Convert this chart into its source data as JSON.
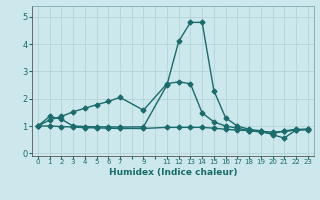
{
  "xlabel": "Humidex (Indice chaleur)",
  "bg_color": "#cce8ec",
  "line_color": "#1a6b6b",
  "grid_color": "#b0d0d4",
  "ylim": [
    -0.1,
    5.4
  ],
  "xlim": [
    -0.5,
    23.5
  ],
  "yticks": [
    0,
    1,
    2,
    3,
    4,
    5
  ],
  "xtick_labels": [
    "0",
    "1",
    "2",
    "3",
    "4",
    "5",
    "6",
    "7",
    "",
    "9",
    "",
    "11",
    "12",
    "13",
    "14",
    "15",
    "16",
    "17",
    "18",
    "19",
    "20",
    "21",
    "22",
    "23"
  ],
  "line1_x": [
    0,
    1,
    2,
    3,
    4,
    5,
    6,
    7,
    9,
    11,
    12,
    13,
    14,
    15,
    16,
    17,
    18,
    19,
    20,
    21,
    22,
    23
  ],
  "line1_y": [
    1.0,
    1.35,
    1.25,
    1.0,
    0.98,
    0.97,
    0.97,
    0.96,
    0.97,
    2.5,
    4.1,
    4.8,
    4.8,
    2.3,
    1.3,
    1.0,
    0.88,
    0.82,
    0.68,
    0.56,
    0.85,
    0.88
  ],
  "line2_x": [
    0,
    1,
    2,
    3,
    4,
    5,
    6,
    7,
    9,
    11,
    12,
    13,
    14,
    15,
    16,
    17,
    18,
    19,
    20,
    21,
    22,
    23
  ],
  "line2_y": [
    1.0,
    1.22,
    1.35,
    1.52,
    1.65,
    1.78,
    1.9,
    2.05,
    1.58,
    2.55,
    2.62,
    2.55,
    1.48,
    1.15,
    1.0,
    0.92,
    0.83,
    0.78,
    0.72,
    0.82,
    0.88,
    0.88
  ],
  "line3_x": [
    0,
    1,
    2,
    3,
    4,
    5,
    6,
    7,
    9,
    11,
    12,
    13,
    14,
    15,
    16,
    17,
    18,
    19,
    20,
    21,
    22,
    23
  ],
  "line3_y": [
    1.0,
    1.0,
    0.98,
    0.96,
    0.94,
    0.93,
    0.92,
    0.91,
    0.91,
    0.95,
    0.95,
    0.95,
    0.95,
    0.92,
    0.88,
    0.85,
    0.83,
    0.8,
    0.78,
    0.8,
    0.85,
    0.87
  ],
  "marker": "D",
  "markersize": 2.5,
  "linewidth": 1.0
}
